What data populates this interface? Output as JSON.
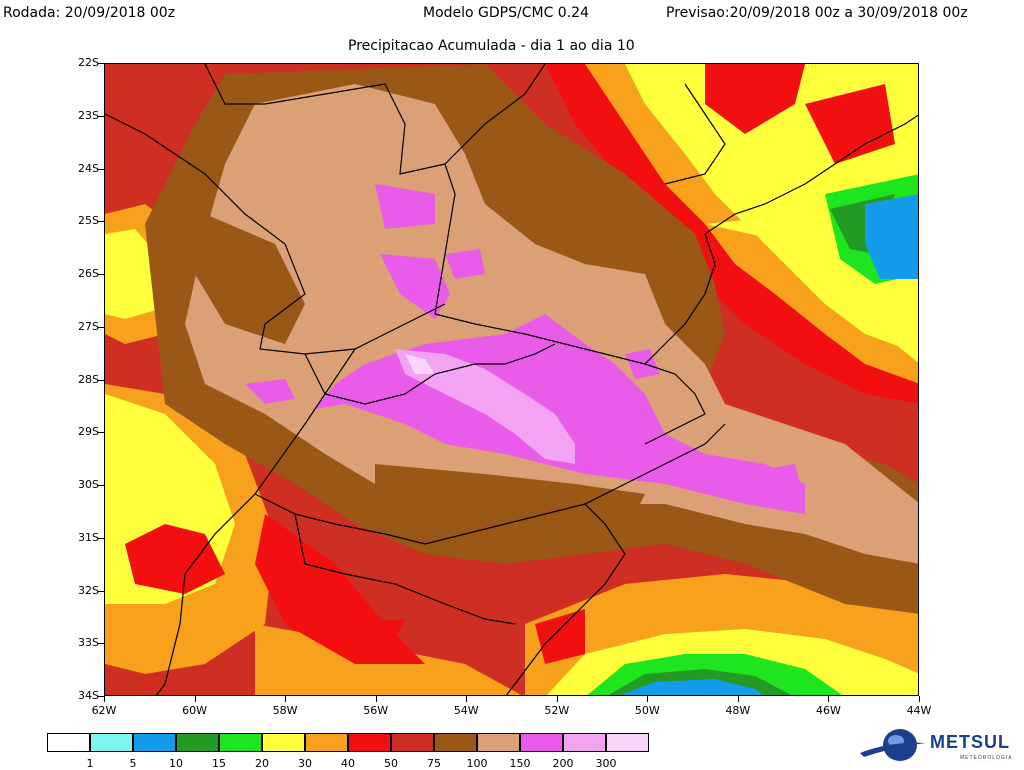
{
  "header": {
    "rodada": "Rodada: 20/09/2018 00z",
    "modelo": "Modelo GDPS/CMC 0.24",
    "previsao": "Previsao:20/09/2018 00z a 30/09/2018 00z",
    "subtitle": "Precipitacao Acumulada - dia 1 ao dia 10"
  },
  "axes": {
    "lat_labels": [
      "22S",
      "23S",
      "24S",
      "25S",
      "26S",
      "27S",
      "28S",
      "29S",
      "30S",
      "31S",
      "32S",
      "33S",
      "34S"
    ],
    "lon_labels": [
      "62W",
      "60W",
      "58W",
      "56W",
      "54W",
      "52W",
      "50W",
      "48W",
      "46W",
      "44W"
    ]
  },
  "legend": {
    "labels": [
      "1",
      "5",
      "10",
      "15",
      "20",
      "30",
      "40",
      "50",
      "75",
      "100",
      "150",
      "200",
      "300"
    ],
    "colors": [
      "#ffffff",
      "#7ff5ef",
      "#149bea",
      "#239a23",
      "#1ee61e",
      "#ffff3c",
      "#f8a11c",
      "#f20f10",
      "#cf2e22",
      "#9b5716",
      "#dca076",
      "#e95be9",
      "#f2a3f2",
      "#fad4fa"
    ]
  },
  "map_colors": {
    "c30": "#ffff3c",
    "c40": "#f8a11c",
    "c50": "#f20f10",
    "c75": "#cf2e22",
    "c100": "#9b5716",
    "c150": "#dca076",
    "c200": "#e95be9",
    "c300": "#f2a3f2",
    "c300b": "#fad4fa",
    "c15": "#239a23",
    "c20": "#1ee61e",
    "c10": "#149bea"
  },
  "logo": {
    "name": "METSUL",
    "sub": "METEOROLOGIA"
  }
}
